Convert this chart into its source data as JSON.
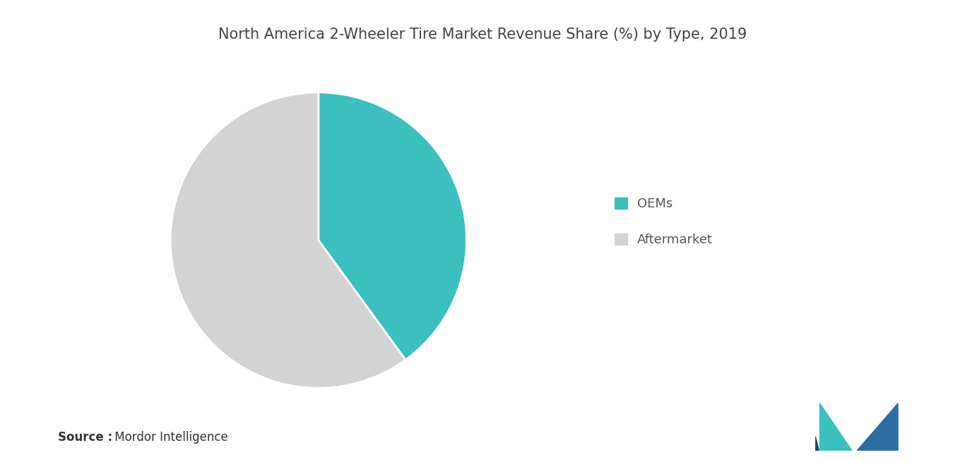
{
  "title": "North America 2-Wheeler Tire Market Revenue Share (%) by Type, 2019",
  "slices": [
    40,
    60
  ],
  "labels": [
    "OEMs",
    "Aftermarket"
  ],
  "colors": [
    "#3bbfbf",
    "#d3d3d3"
  ],
  "legend_labels": [
    "OEMs",
    "Aftermarket"
  ],
  "source_bold": "Source :",
  "source_normal": " Mordor Intelligence",
  "background_color": "#ffffff",
  "title_fontsize": 15,
  "title_color": "#444444",
  "legend_fontsize": 13,
  "source_fontsize": 12,
  "startangle": 90
}
